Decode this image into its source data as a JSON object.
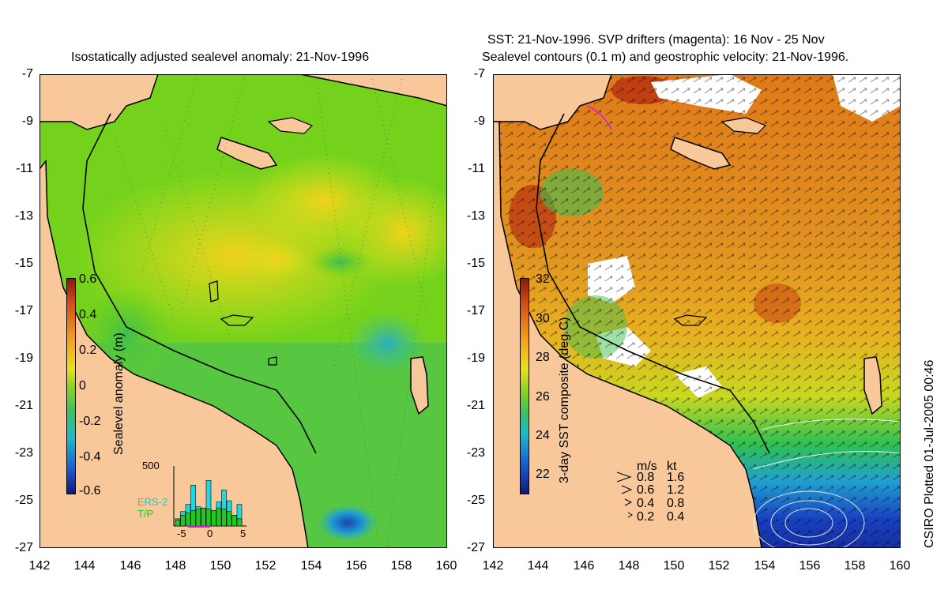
{
  "left_panel": {
    "title": "Isostatically adjusted sealevel anomaly: 21-Nov-1996",
    "y_ticks": [
      "-7",
      "-9",
      "-11",
      "-13",
      "-15",
      "-17",
      "-19",
      "-21",
      "-23",
      "-25",
      "-27"
    ],
    "x_ticks": [
      "142",
      "144",
      "146",
      "148",
      "150",
      "152",
      "154",
      "156",
      "158",
      "160"
    ],
    "colorbar": {
      "label": "Sealevel anomaly (m)",
      "ticks": [
        "0.6",
        "0.4",
        "0.2",
        "0",
        "-0.2",
        "-0.4",
        "-0.6"
      ],
      "range": [
        -0.6,
        0.6
      ]
    },
    "inset": {
      "ymax_label": "500",
      "x_ticks": [
        "-5",
        "0",
        "5"
      ],
      "legend": [
        "ERS-2",
        "T/P"
      ],
      "series": [
        {
          "name": "ERS-2",
          "values": [
            60,
            120,
            180,
            340,
            160,
            110,
            380,
            120,
            200,
            300,
            210,
            70,
            180
          ]
        },
        {
          "name": "T/P",
          "values": [
            50,
            90,
            110,
            130,
            140,
            150,
            140,
            130,
            150,
            140,
            120,
            90,
            60
          ]
        }
      ]
    }
  },
  "right_panel": {
    "title_line1": "SST: 21-Nov-1996. SVP drifters (magenta): 16 Nov - 25 Nov",
    "title_line2": "Sealevel contours (0.1 m) and geostrophic velocity: 21-Nov-1996.",
    "y_ticks": [
      "-7",
      "-9",
      "-11",
      "-13",
      "-15",
      "-17",
      "-19",
      "-21",
      "-23",
      "-25",
      "-27"
    ],
    "x_ticks": [
      "142",
      "144",
      "146",
      "148",
      "150",
      "152",
      "154",
      "156",
      "158",
      "160"
    ],
    "colorbar": {
      "label": "3-day SST composite (deg C)",
      "ticks": [
        "32",
        "30",
        "28",
        "26",
        "24",
        "22"
      ],
      "range": [
        21,
        32
      ]
    },
    "velocity_legend": {
      "header_ms": "m/s",
      "header_kt": "kt",
      "rows": [
        {
          "ms": "0.8",
          "kt": "1.6"
        },
        {
          "ms": "0.6",
          "kt": "1.2"
        },
        {
          "ms": "0.4",
          "kt": "0.8"
        },
        {
          "ms": "0.2",
          "kt": "0.4"
        }
      ]
    }
  },
  "side_label": "CSIRO Plotted 01-Jul-2005 00:46",
  "colors": {
    "land": "#f8c89a",
    "coast": "#000000",
    "sla_mid": "#66cc22",
    "sst_warm": "#e08a1a"
  }
}
